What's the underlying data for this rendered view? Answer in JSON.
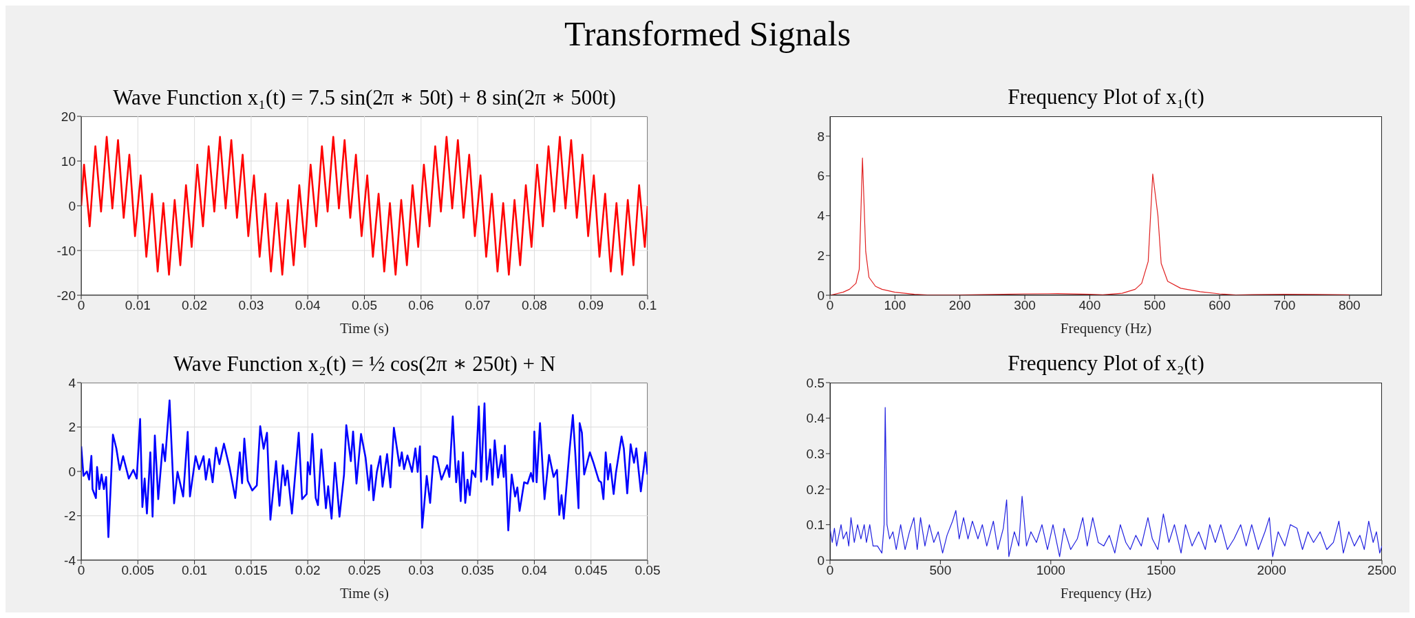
{
  "chart_data": [
    {
      "type": "line",
      "title": "Wave Function x₁(t) = 7.5 sin(2π ∗ 50t) + 8 sin(2π ∗ 500t)",
      "xlabel": "Time (s)",
      "annotations": [
        "Transformed Signals"
      ],
      "color": "#ff0000",
      "grid": true,
      "xlim": [
        0,
        0.1
      ],
      "xticks": [
        0,
        0.01,
        0.02,
        0.03,
        0.04,
        0.05,
        0.06,
        0.07,
        0.08,
        0.09,
        0.1
      ],
      "ylim": [
        -20,
        20
      ],
      "yticks": [
        -20,
        -10,
        0,
        10,
        20
      ],
      "x": [
        0,
        0.0005,
        0.0015,
        0.0025,
        0.0035,
        0.0045,
        0.0055,
        0.0065,
        0.0075,
        0.0085,
        0.0095,
        0.0105,
        0.0115,
        0.0125,
        0.0135,
        0.0145,
        0.0155,
        0.0165,
        0.0175,
        0.0185,
        0.0195,
        0.0205,
        0.0215,
        0.0225,
        0.0235,
        0.0245,
        0.0255,
        0.0265,
        0.0275,
        0.0285,
        0.0295,
        0.0305,
        0.0315,
        0.0325,
        0.0335,
        0.0345,
        0.0355,
        0.0365,
        0.0375,
        0.0385,
        0.0395,
        0.0405,
        0.0415,
        0.0425,
        0.0435,
        0.0445,
        0.0455,
        0.0465,
        0.0475,
        0.0485,
        0.0495,
        0.0505,
        0.0515,
        0.0525,
        0.0535,
        0.0545,
        0.0555,
        0.0565,
        0.0575,
        0.0585,
        0.0595,
        0.0605,
        0.0615,
        0.0625,
        0.0635,
        0.0645,
        0.0655,
        0.0665,
        0.0675,
        0.0685,
        0.0695,
        0.0705,
        0.0715,
        0.0725,
        0.0735,
        0.0745,
        0.0755,
        0.0765,
        0.0775,
        0.0785,
        0.0795,
        0.0805,
        0.0815,
        0.0825,
        0.0835,
        0.0845,
        0.0855,
        0.0865,
        0.0875,
        0.0885,
        0.0895,
        0.0905,
        0.0915,
        0.0925,
        0.0935,
        0.0945,
        0.0955,
        0.0965,
        0.0975,
        0.0985,
        0.0995,
        0.1
      ],
      "values": [
        0,
        9.2,
        -4.6,
        13.3,
        -1.3,
        15.4,
        -0.6,
        14.7,
        -2.7,
        11.4,
        -6.8,
        6.8,
        -11.4,
        2.7,
        -14.7,
        0.6,
        -15.4,
        1.3,
        -13.3,
        4.6,
        -9.2,
        9.2,
        -4.6,
        13.3,
        -1.3,
        15.4,
        -0.6,
        14.7,
        -2.7,
        11.4,
        -6.8,
        6.8,
        -11.4,
        2.7,
        -14.7,
        0.6,
        -15.4,
        1.3,
        -13.3,
        4.6,
        -9.2,
        9.2,
        -4.6,
        13.3,
        -1.3,
        15.4,
        -0.6,
        14.7,
        -2.7,
        11.4,
        -6.8,
        6.8,
        -11.4,
        2.7,
        -14.7,
        0.6,
        -15.4,
        1.3,
        -13.3,
        4.6,
        -9.2,
        9.2,
        -4.6,
        13.3,
        -1.3,
        15.4,
        -0.6,
        14.7,
        -2.7,
        11.4,
        -6.8,
        6.8,
        -11.4,
        2.7,
        -14.7,
        0.6,
        -15.4,
        1.3,
        -13.3,
        4.6,
        -9.2,
        9.2,
        -4.6,
        13.3,
        -1.3,
        15.4,
        -0.6,
        14.7,
        -2.7,
        11.4,
        -6.8,
        6.8,
        -11.4,
        2.7,
        -14.7,
        0.6,
        -15.4,
        1.3,
        -13.3,
        4.6,
        -9.2,
        0
      ]
    },
    {
      "type": "line",
      "title": "Frequency Plot of x₁(t)",
      "xlabel": "Frequency (Hz)",
      "color": "#e02020",
      "xlim": [
        0,
        850
      ],
      "xticks": [
        0,
        100,
        200,
        300,
        400,
        500,
        600,
        700,
        800
      ],
      "ylim": [
        0,
        9
      ],
      "yticks": [
        0,
        2,
        4,
        6,
        8
      ],
      "x": [
        0,
        20,
        30,
        40,
        45,
        50,
        55,
        60,
        70,
        80,
        100,
        130,
        150,
        200,
        250,
        300,
        350,
        400,
        420,
        450,
        470,
        480,
        490,
        497,
        505,
        510,
        520,
        540,
        570,
        600,
        625,
        650,
        700,
        750,
        800
      ],
      "values": [
        0,
        0.15,
        0.3,
        0.6,
        1.3,
        6.9,
        2.2,
        0.9,
        0.45,
        0.3,
        0.15,
        0.05,
        0.01,
        0.01,
        0.04,
        0.07,
        0.08,
        0.05,
        0.02,
        0.1,
        0.3,
        0.6,
        1.7,
        6.1,
        4,
        1.6,
        0.7,
        0.35,
        0.18,
        0.07,
        0.01,
        0.03,
        0.05,
        0.04,
        0.02
      ]
    },
    {
      "type": "line",
      "title": "Wave Function x₂(t) = ½ cos(2π ∗ 250t) + N",
      "xlabel": "Time (s)",
      "color": "#0000ff",
      "grid": true,
      "xlim": [
        0,
        0.05
      ],
      "xticks": [
        0,
        0.005,
        0.01,
        0.015,
        0.02,
        0.025,
        0.03,
        0.035,
        0.04,
        0.045,
        0.05
      ],
      "ylim": [
        -4,
        4
      ],
      "yticks": [
        -4,
        -2,
        0,
        2,
        4
      ],
      "x": [
        0,
        0.0002,
        0.0005,
        0.0007,
        0.0009,
        0.001,
        0.0013,
        0.0014,
        0.0016,
        0.0018,
        0.002,
        0.0022,
        0.0024,
        0.0027,
        0.0028,
        0.0031,
        0.0034,
        0.0037,
        0.0042,
        0.0046,
        0.0049,
        0.0052,
        0.0054,
        0.0056,
        0.0058,
        0.0061,
        0.0063,
        0.0065,
        0.0068,
        0.0072,
        0.0074,
        0.0078,
        0.0082,
        0.0085,
        0.009,
        0.0094,
        0.0096,
        0.0101,
        0.0104,
        0.0108,
        0.011,
        0.0113,
        0.0116,
        0.0119,
        0.0122,
        0.0126,
        0.0131,
        0.0136,
        0.014,
        0.0142,
        0.0144,
        0.0147,
        0.0151,
        0.0155,
        0.0158,
        0.0161,
        0.0164,
        0.0167,
        0.0172,
        0.0175,
        0.0178,
        0.018,
        0.0182,
        0.0186,
        0.0192,
        0.0195,
        0.0199,
        0.02,
        0.0202,
        0.0204,
        0.0207,
        0.0209,
        0.0212,
        0.0216,
        0.0218,
        0.0221,
        0.0224,
        0.0228,
        0.0232,
        0.0234,
        0.0238,
        0.024,
        0.0243,
        0.0247,
        0.0251,
        0.0254,
        0.0256,
        0.0258,
        0.0261,
        0.0264,
        0.0266,
        0.027,
        0.0273,
        0.0276,
        0.0281,
        0.0283,
        0.0285,
        0.0288,
        0.0292,
        0.0295,
        0.0297,
        0.0299,
        0.0301,
        0.0305,
        0.0308,
        0.0311,
        0.0314,
        0.0318,
        0.0323,
        0.0325,
        0.0328,
        0.0331,
        0.0333,
        0.0335,
        0.0337,
        0.0339,
        0.0341,
        0.0343,
        0.0345,
        0.0348,
        0.0351,
        0.0353,
        0.0356,
        0.0358,
        0.0361,
        0.0363,
        0.0365,
        0.0368,
        0.0371,
        0.0373,
        0.0374,
        0.0377,
        0.038,
        0.0383,
        0.0385,
        0.0387,
        0.0391,
        0.0394,
        0.0397,
        0.0399,
        0.04,
        0.0402,
        0.0405,
        0.0409,
        0.0413,
        0.0417,
        0.042,
        0.0422,
        0.0424,
        0.0426,
        0.0431,
        0.0434,
        0.0436,
        0.0439,
        0.044,
        0.0442,
        0.0444,
        0.0449,
        0.0452,
        0.0457,
        0.0459,
        0.0461,
        0.0463,
        0.0465,
        0.0467,
        0.047,
        0.0472,
        0.0477,
        0.0479,
        0.0482,
        0.0485,
        0.0488,
        0.049,
        0.0494,
        0.0497,
        0.0498,
        0.05
      ],
      "values": [
        1.13,
        -0.2,
        0,
        -0.37,
        0.7,
        -0.8,
        -1.2,
        0.2,
        -0.8,
        -0.14,
        -0.8,
        -0.25,
        -2.96,
        0.42,
        1.66,
        1.04,
        0.07,
        0.69,
        -0.32,
        0.07,
        -0.32,
        2.36,
        -1.6,
        -0.32,
        -1.9,
        0.86,
        -2.04,
        1.62,
        -1.25,
        1.22,
        0.46,
        3.2,
        -1.44,
        -0.02,
        -1.13,
        1.78,
        -1.13,
        0.69,
        0.1,
        0.69,
        -0.37,
        0.56,
        -0.49,
        1.07,
        0.33,
        1.25,
        0.16,
        -1.2,
        0.86,
        -0.53,
        1.48,
        -0.42,
        -0.86,
        -0.63,
        2.04,
        1.02,
        1.74,
        -2.18,
        0.46,
        -1.55,
        0.28,
        -0.63,
        0.04,
        -1.9,
        1.74,
        -1.25,
        -1.02,
        0.42,
        -0.14,
        1.69,
        -1.2,
        -1.52,
        0.99,
        -1.66,
        -0.67,
        -2.13,
        0.39,
        -2.04,
        -0.14,
        2.08,
        0.46,
        1.8,
        -0.55,
        1.69,
        0.63,
        -0.85,
        0.28,
        -1.3,
        -0.02,
        0.69,
        -0.69,
        0.78,
        -0.72,
        1.97,
        0.25,
        0.86,
        0.1,
        0.72,
        -0.02,
        1.04,
        -0.02,
        1.13,
        -2.54,
        -0.2,
        -1.42,
        0.69,
        0.63,
        -0.37,
        0.28,
        -0.25,
        2.48,
        -0.49,
        0.46,
        -1.34,
        0.86,
        -1.42,
        -0.37,
        -1.07,
        0.04,
        -0.25,
        2.93,
        -0.46,
        3.07,
        -0.37,
        0.99,
        -0.6,
        1.4,
        -0.28,
        0.74,
        -0.25,
        1.16,
        -2.66,
        -0.14,
        -1.13,
        -0.72,
        -1.78,
        -0.49,
        -0.55,
        -0.07,
        -0.46,
        1.8,
        -0.49,
        2.18,
        -1.25,
        0.74,
        -0.25,
        0.07,
        -1.96,
        -1.07,
        -2.13,
        0.92,
        2.54,
        0.95,
        -1.66,
        2.18,
        1.74,
        -0.14,
        0.86,
        0.42,
        -0.42,
        -0.49,
        -1.25,
        0.86,
        -0.37,
        0.33,
        -1.02,
        -0.07,
        1.57,
        1.04,
        -0.99,
        1.22,
        0.39,
        1.04,
        -0.9,
        0.33,
        0.86,
        -0.14
      ]
    },
    {
      "type": "line",
      "title": "Frequency Plot of x₂(t)",
      "xlabel": "Frequency (Hz)",
      "color": "#2020e0",
      "xlim": [
        0,
        2500
      ],
      "xticks": [
        0,
        500,
        1000,
        1500,
        2000,
        2500
      ],
      "ylim": [
        0,
        0.5
      ],
      "yticks": [
        0,
        0.1,
        0.2,
        0.3,
        0.4,
        0.5
      ],
      "x": [
        0,
        10,
        20,
        30,
        50,
        60,
        75,
        85,
        95,
        110,
        125,
        140,
        155,
        165,
        180,
        195,
        215,
        235,
        245,
        250,
        258,
        270,
        285,
        300,
        320,
        340,
        360,
        380,
        395,
        410,
        430,
        450,
        470,
        490,
        510,
        530,
        555,
        570,
        585,
        605,
        625,
        645,
        670,
        690,
        710,
        740,
        760,
        785,
        800,
        810,
        835,
        855,
        870,
        890,
        910,
        935,
        960,
        985,
        1010,
        1040,
        1060,
        1090,
        1120,
        1145,
        1165,
        1190,
        1215,
        1240,
        1265,
        1290,
        1315,
        1340,
        1360,
        1385,
        1410,
        1440,
        1460,
        1485,
        1510,
        1535,
        1560,
        1590,
        1610,
        1640,
        1670,
        1700,
        1720,
        1745,
        1770,
        1800,
        1830,
        1860,
        1885,
        1910,
        1940,
        1970,
        1990,
        2005,
        2030,
        2060,
        2085,
        2115,
        2140,
        2165,
        2190,
        2220,
        2250,
        2280,
        2305,
        2325,
        2350,
        2375,
        2400,
        2420,
        2440,
        2460,
        2475,
        2490,
        2500
      ],
      "values": [
        0.09,
        0.05,
        0.09,
        0.04,
        0.1,
        0.06,
        0.08,
        0.04,
        0.12,
        0.05,
        0.1,
        0.06,
        0.1,
        0.05,
        0.1,
        0.04,
        0.04,
        0.02,
        0.1,
        0.43,
        0.1,
        0.06,
        0.08,
        0.03,
        0.1,
        0.03,
        0.08,
        0.12,
        0.03,
        0.12,
        0.04,
        0.1,
        0.05,
        0.08,
        0.02,
        0.07,
        0.11,
        0.14,
        0.06,
        0.12,
        0.06,
        0.11,
        0.06,
        0.1,
        0.04,
        0.11,
        0.03,
        0.09,
        0.17,
        0.01,
        0.08,
        0.04,
        0.18,
        0.04,
        0.08,
        0.05,
        0.1,
        0.03,
        0.1,
        0.01,
        0.09,
        0.03,
        0.06,
        0.12,
        0.04,
        0.12,
        0.05,
        0.04,
        0.07,
        0.02,
        0.1,
        0.05,
        0.03,
        0.07,
        0.04,
        0.12,
        0.06,
        0.03,
        0.13,
        0.05,
        0.1,
        0.02,
        0.1,
        0.04,
        0.08,
        0.03,
        0.1,
        0.05,
        0.1,
        0.03,
        0.06,
        0.1,
        0.04,
        0.1,
        0.03,
        0.08,
        0.12,
        0.01,
        0.08,
        0.04,
        0.1,
        0.09,
        0.03,
        0.08,
        0.05,
        0.08,
        0.03,
        0.05,
        0.11,
        0.02,
        0.08,
        0.04,
        0.07,
        0.03,
        0.11,
        0.05,
        0.08,
        0.02,
        0.04
      ]
    }
  ]
}
